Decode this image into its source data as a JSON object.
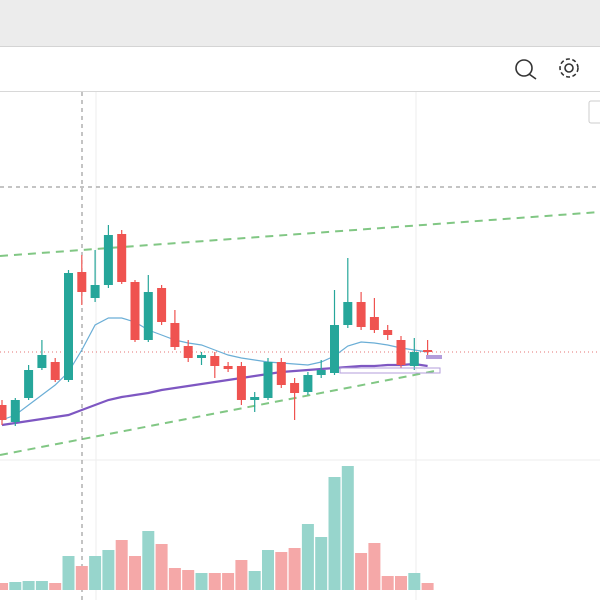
{
  "chart_data": {
    "type": "candlestick",
    "up_color": "#26a69a",
    "down_color": "#ef5350",
    "volume_up_color": "#97d5cc",
    "volume_down_color": "#f5a8a8",
    "open": [
      195,
      178,
      202,
      232,
      238,
      220,
      328,
      302,
      315,
      366,
      318,
      260,
      312,
      277,
      254,
      242,
      244,
      234,
      234,
      200,
      202,
      238,
      217,
      208,
      225,
      227,
      275,
      298,
      283,
      270,
      260,
      234,
      250
    ],
    "high": [
      200,
      202,
      235,
      260,
      242,
      330,
      345,
      350,
      375,
      370,
      320,
      325,
      315,
      290,
      260,
      248,
      248,
      238,
      238,
      208,
      242,
      242,
      222,
      228,
      240,
      310,
      342,
      308,
      302,
      275,
      264,
      262,
      260
    ],
    "low": [
      175,
      174,
      200,
      230,
      218,
      218,
      295,
      298,
      312,
      316,
      258,
      258,
      275,
      250,
      238,
      235,
      222,
      228,
      195,
      188,
      200,
      212,
      180,
      205,
      222,
      225,
      272,
      270,
      267,
      260,
      232,
      230,
      242
    ],
    "close": [
      180,
      200,
      230,
      245,
      220,
      327,
      308,
      315,
      365,
      318,
      260,
      308,
      278,
      253,
      242,
      245,
      234,
      231,
      200,
      203,
      238,
      215,
      207,
      225,
      230,
      275,
      298,
      273,
      270,
      265,
      235,
      248,
      248
    ],
    "volume": [
      7,
      8,
      9,
      9,
      7,
      34,
      24,
      34,
      40,
      50,
      34,
      59,
      46,
      22,
      20,
      17,
      17,
      17,
      30,
      19,
      40,
      38,
      42,
      66,
      53,
      113,
      124,
      37,
      47,
      14,
      14,
      17,
      7
    ],
    "lines": [
      {
        "color": "#6baed6",
        "values": [
          180,
          185,
          195,
          205,
          215,
          228,
          250,
          275,
          282,
          282,
          278,
          270,
          265,
          260,
          257,
          255,
          250,
          245,
          242,
          240,
          238,
          237,
          236,
          235,
          238,
          244,
          254,
          258,
          257,
          255,
          252,
          250,
          248
        ]
      },
      {
        "color": "#7e57c2",
        "values": [
          175,
          177,
          179,
          181,
          183,
          185,
          190,
          195,
          200,
          203,
          205,
          207,
          210,
          212,
          214,
          216,
          218,
          220,
          222,
          224,
          226,
          228,
          229,
          230,
          231,
          232,
          233,
          234,
          234,
          235,
          235,
          236,
          234
        ]
      }
    ]
  }
}
